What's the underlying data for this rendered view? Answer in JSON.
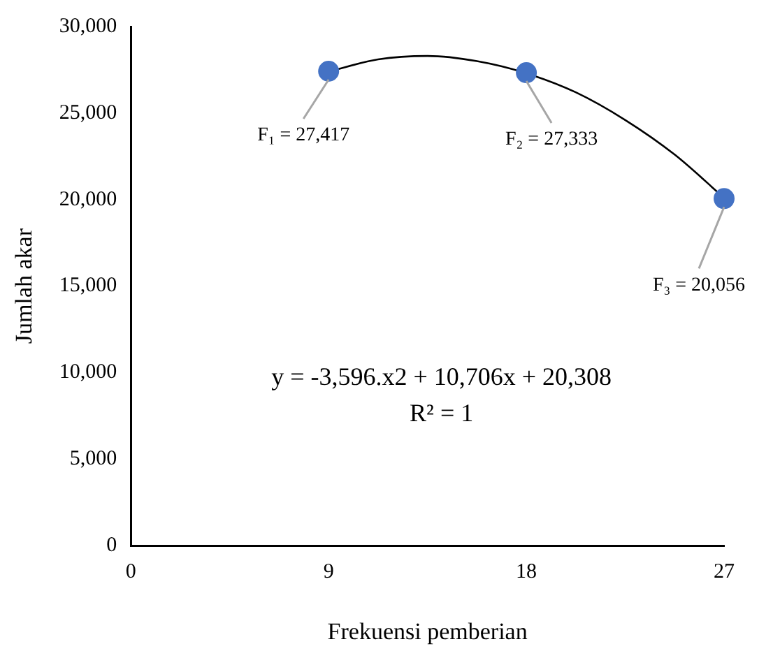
{
  "chart_data": {
    "type": "scatter",
    "xlabel": "Frekuensi pemberian",
    "ylabel": "Jumlah akar",
    "xlim": [
      0,
      27
    ],
    "xticks": [
      0,
      9,
      18,
      27
    ],
    "ylim": [
      0,
      30000
    ],
    "yticks": [
      {
        "value": 0,
        "label": "0"
      },
      {
        "value": 5000,
        "label": "5,000"
      },
      {
        "value": 10000,
        "label": "10,000"
      },
      {
        "value": 15000,
        "label": "15,000"
      },
      {
        "value": 20000,
        "label": "20,000"
      },
      {
        "value": 25000,
        "label": "25,000"
      },
      {
        "value": 30000,
        "label": "30,000"
      }
    ],
    "grid": false,
    "legend": false,
    "series": [
      {
        "x": [
          9,
          18,
          27
        ],
        "values": [
          27417,
          27333,
          20056
        ],
        "color": "#4472c4",
        "marker": "circle",
        "value_labels": [
          "F₁ = 27,417",
          "F₂ = 27,333",
          "F₃ = 20,056"
        ]
      },
      {
        "type": "line",
        "x": [
          9,
          11.25,
          13.5,
          15.75,
          18,
          20.25,
          22.5,
          24.75,
          27
        ],
        "values": [
          27400,
          28100,
          28300,
          28000,
          27300,
          26200,
          24600,
          22600,
          20100
        ],
        "color": "#000000",
        "marker": "none",
        "line_style": "solid"
      }
    ],
    "annotations": [
      "y = -3,596.x2 + 10,706x + 20,308",
      "R² = 1"
    ]
  }
}
